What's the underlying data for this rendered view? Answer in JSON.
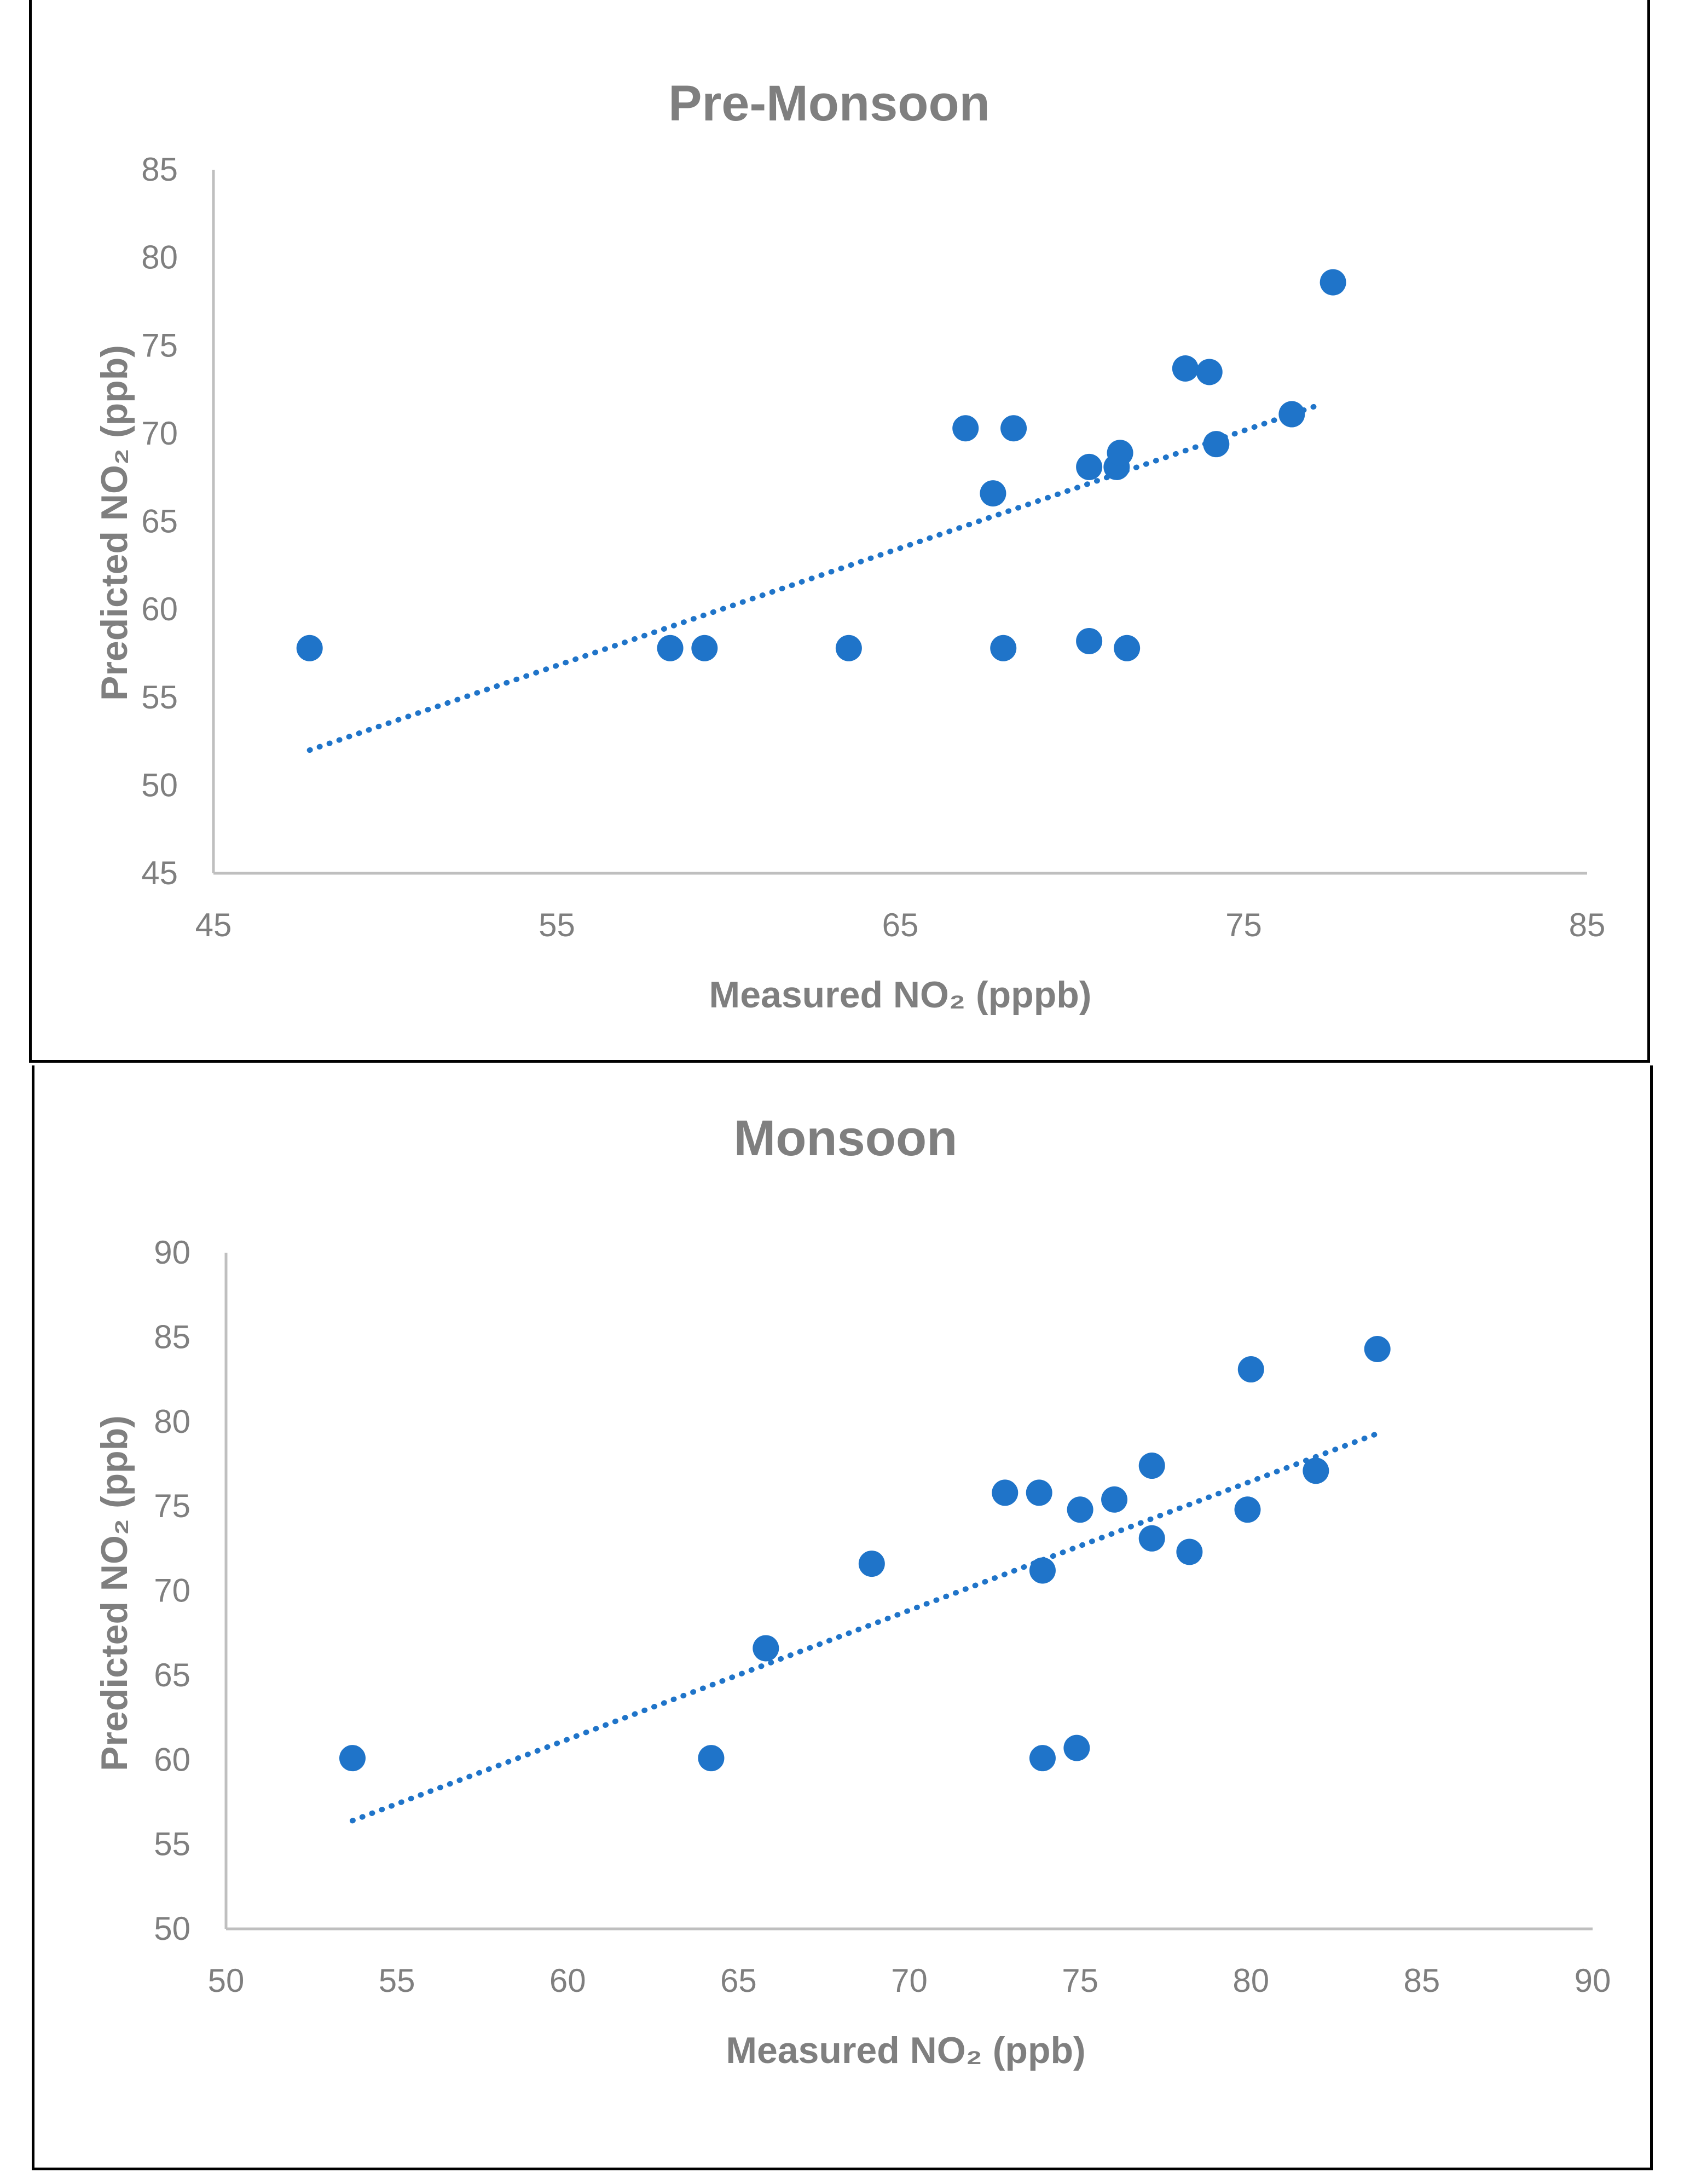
{
  "chart_data": [
    {
      "type": "scatter",
      "title": "Pre-Monsoon",
      "xlabel": "Measured NO₂ (pppb)",
      "ylabel": "Predicted NO₂ (ppb)",
      "xlim": [
        45,
        85
      ],
      "ylim": [
        45,
        85
      ],
      "xticks": [
        "45",
        "55",
        "65",
        "75",
        "85"
      ],
      "yticks": [
        "45",
        "50",
        "55",
        "60",
        "65",
        "70",
        "75",
        "80",
        "85"
      ],
      "points": [
        {
          "x": 47.8,
          "y": 57.8
        },
        {
          "x": 58.3,
          "y": 57.8
        },
        {
          "x": 59.3,
          "y": 57.8
        },
        {
          "x": 63.5,
          "y": 57.8
        },
        {
          "x": 66.9,
          "y": 70.3
        },
        {
          "x": 67.7,
          "y": 66.6
        },
        {
          "x": 68.0,
          "y": 57.8
        },
        {
          "x": 68.3,
          "y": 70.3
        },
        {
          "x": 70.5,
          "y": 68.1
        },
        {
          "x": 70.5,
          "y": 58.2
        },
        {
          "x": 71.3,
          "y": 68.1
        },
        {
          "x": 71.4,
          "y": 68.9
        },
        {
          "x": 71.6,
          "y": 57.8
        },
        {
          "x": 73.3,
          "y": 73.7
        },
        {
          "x": 74.0,
          "y": 73.5
        },
        {
          "x": 74.2,
          "y": 69.4
        },
        {
          "x": 76.4,
          "y": 71.1
        },
        {
          "x": 77.6,
          "y": 78.6
        }
      ],
      "trendline": {
        "x": [
          47.8,
          77.3
        ],
        "y": [
          52.0,
          71.7
        ]
      },
      "colors": {
        "points": "#1f74c9",
        "text": "#7f7f7f",
        "axis": "#bfbfbf"
      }
    },
    {
      "type": "scatter",
      "title": "Monsoon",
      "xlabel": "Measured NO₂ (ppb)",
      "ylabel": "Predicted NO₂ (ppb)",
      "xlim": [
        50,
        90
      ],
      "ylim": [
        50,
        90
      ],
      "xticks": [
        "50",
        "55",
        "60",
        "65",
        "70",
        "75",
        "80",
        "85",
        "90"
      ],
      "yticks": [
        "50",
        "55",
        "60",
        "65",
        "70",
        "75",
        "80",
        "85",
        "90"
      ],
      "points": [
        {
          "x": 53.7,
          "y": 60.1
        },
        {
          "x": 64.2,
          "y": 60.1
        },
        {
          "x": 65.8,
          "y": 66.6
        },
        {
          "x": 68.9,
          "y": 71.6
        },
        {
          "x": 72.8,
          "y": 75.8
        },
        {
          "x": 73.8,
          "y": 75.8
        },
        {
          "x": 73.9,
          "y": 71.2
        },
        {
          "x": 73.9,
          "y": 60.1
        },
        {
          "x": 74.9,
          "y": 60.7
        },
        {
          "x": 75.0,
          "y": 74.8
        },
        {
          "x": 76.0,
          "y": 75.4
        },
        {
          "x": 77.1,
          "y": 73.1
        },
        {
          "x": 77.1,
          "y": 77.4
        },
        {
          "x": 78.2,
          "y": 72.3
        },
        {
          "x": 79.9,
          "y": 74.8
        },
        {
          "x": 80.0,
          "y": 83.1
        },
        {
          "x": 81.9,
          "y": 77.1
        },
        {
          "x": 83.7,
          "y": 84.3
        }
      ],
      "trendline": {
        "x": [
          53.7,
          83.7
        ],
        "y": [
          56.4,
          79.3
        ]
      },
      "colors": {
        "points": "#1f74c9",
        "text": "#7f7f7f",
        "axis": "#bfbfbf"
      }
    }
  ]
}
